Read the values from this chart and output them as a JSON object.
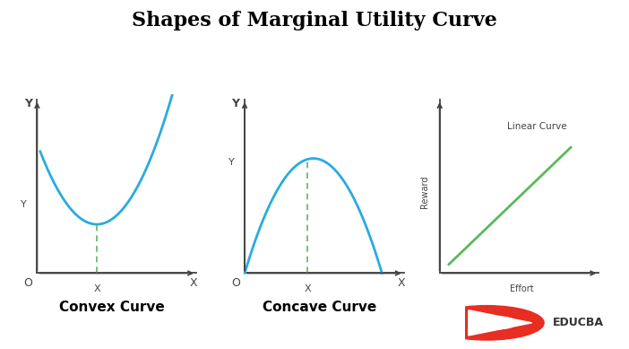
{
  "title": "Shapes of Marginal Utility Curve",
  "title_fontsize": 16,
  "title_fontweight": "bold",
  "background_color": "#ffffff",
  "curve_color": "#29abe2",
  "dashed_color": "#5cb85c",
  "linear_color": "#5cb85c",
  "axis_color": "#444444",
  "label_color": "#444444",
  "subplot_labels": [
    "Convex Curve",
    "Concave Curve",
    "Linear Curve"
  ],
  "subplot_label_fontsize": 11,
  "subplot_label_fontweight": "bold",
  "tick_label_fontsize": 8,
  "axis_label_fontsize": 9
}
